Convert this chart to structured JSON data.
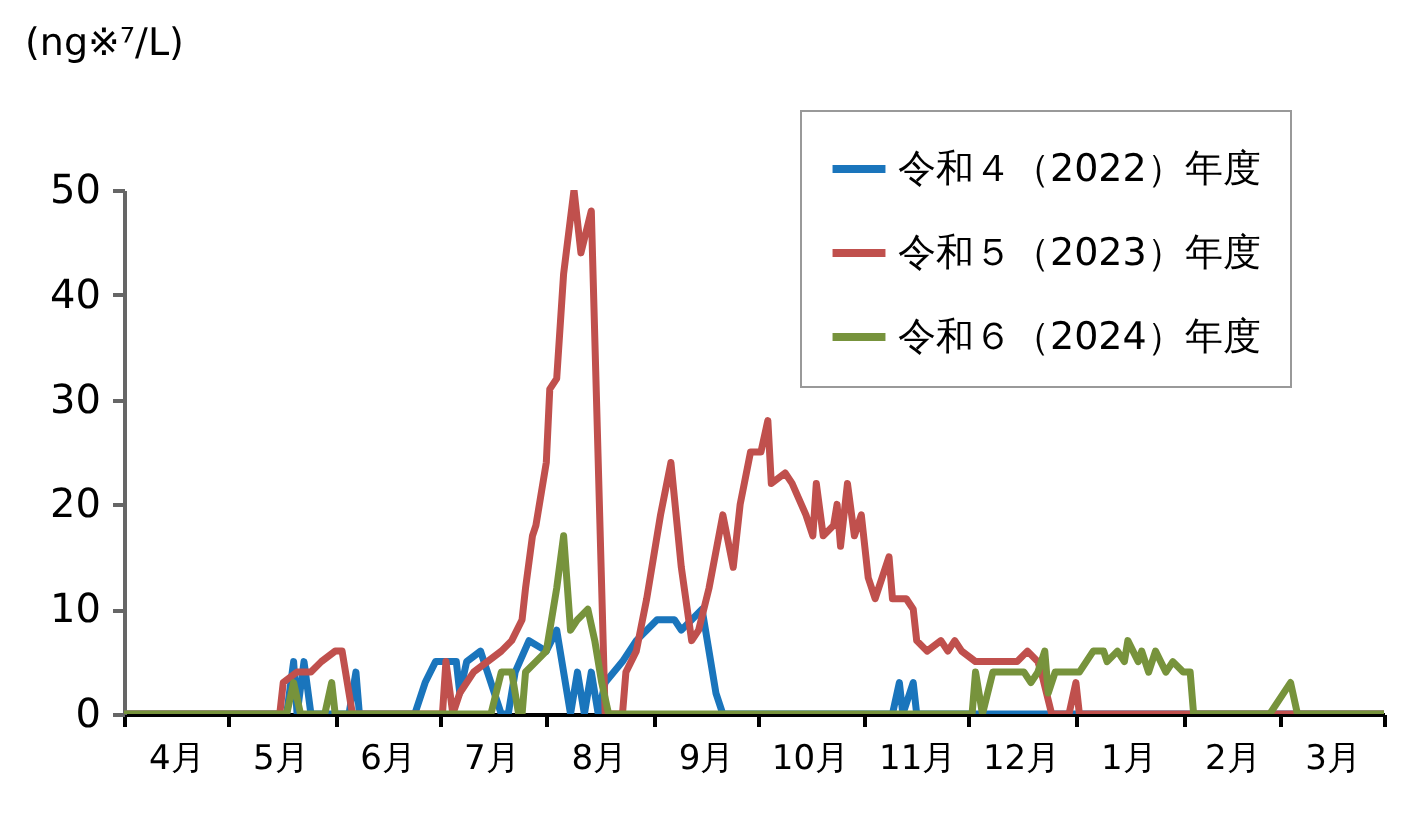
{
  "chart_data": {
    "type": "line",
    "ylabel": "(ng※⁷/L)",
    "xlim": [
      "2022-04-01",
      "2023-03-31"
    ],
    "xticks": [
      {
        "value": "2022-04-01",
        "label": null
      },
      {
        "value": "2022-04-16",
        "label": "4月"
      },
      {
        "value": "2022-05-01",
        "label": null
      },
      {
        "value": "2022-05-16",
        "label": "5月"
      },
      {
        "value": "2022-06-01",
        "label": null
      },
      {
        "value": "2022-06-16",
        "label": "6月"
      },
      {
        "value": "2022-07-01",
        "label": null
      },
      {
        "value": "2022-07-16",
        "label": "7月"
      },
      {
        "value": "2022-08-01",
        "label": null
      },
      {
        "value": "2022-08-16",
        "label": "8月"
      },
      {
        "value": "2022-09-01",
        "label": null
      },
      {
        "value": "2022-09-16",
        "label": "9月"
      },
      {
        "value": "2022-10-01",
        "label": null
      },
      {
        "value": "2022-10-16",
        "label": "10月"
      },
      {
        "value": "2022-11-01",
        "label": null
      },
      {
        "value": "2022-11-16",
        "label": "11月"
      },
      {
        "value": "2022-12-01",
        "label": null
      },
      {
        "value": "2022-12-16",
        "label": "12月"
      },
      {
        "value": "2023-01-01",
        "label": null
      },
      {
        "value": "2023-01-16",
        "label": "1月"
      },
      {
        "value": "2023-02-01",
        "label": null
      },
      {
        "value": "2023-02-15",
        "label": "2月"
      },
      {
        "value": "2023-03-01",
        "label": null
      },
      {
        "value": "2023-03-16",
        "label": "3月"
      },
      {
        "value": "2023-03-31",
        "label": null
      }
    ],
    "ylim": [
      0,
      50
    ],
    "yticks": [
      0,
      10,
      20,
      30,
      40,
      50
    ],
    "legend": "top right",
    "series": [
      {
        "name": "令和４（2022）年度",
        "color": "#1a75bc",
        "x": [
          "2022-04-01",
          "2022-05-18",
          "2022-05-20",
          "2022-05-21",
          "2022-05-23",
          "2022-05-25",
          "2022-06-05",
          "2022-06-07",
          "2022-06-08",
          "2022-06-24",
          "2022-06-27",
          "2022-06-30",
          "2022-07-06",
          "2022-07-07",
          "2022-07-09",
          "2022-07-13",
          "2022-07-17",
          "2022-07-19",
          "2022-07-21",
          "2022-07-23",
          "2022-07-27",
          "2022-08-01",
          "2022-08-04",
          "2022-08-08",
          "2022-08-10",
          "2022-08-12",
          "2022-08-14",
          "2022-08-16",
          "2022-08-18",
          "2022-08-23",
          "2022-08-27",
          "2022-09-02",
          "2022-09-07",
          "2022-09-09",
          "2022-09-12",
          "2022-09-15",
          "2022-09-19",
          "2022-09-21",
          "2022-11-09",
          "2022-11-11",
          "2022-11-12",
          "2022-11-15",
          "2022-11-16",
          "2023-03-31"
        ],
        "values": [
          0,
          0,
          5,
          0,
          5,
          0,
          0,
          4,
          0,
          0,
          3,
          5,
          5,
          2,
          5,
          6,
          2,
          0,
          0,
          4,
          7,
          6,
          8,
          0,
          4,
          0,
          4,
          0,
          3,
          5,
          7,
          9,
          9,
          8,
          9,
          10,
          2,
          0,
          0,
          3,
          0,
          3,
          0,
          0
        ]
      },
      {
        "name": "令和５（2023）年度",
        "color": "#c0504d",
        "x": [
          "2022-04-01",
          "2022-05-16",
          "2022-05-17",
          "2022-05-21",
          "2022-05-25",
          "2022-05-28",
          "2022-06-01",
          "2022-06-03",
          "2022-06-06",
          "2022-07-02",
          "2022-07-03",
          "2022-07-05",
          "2022-07-07",
          "2022-07-11",
          "2022-07-15",
          "2022-07-19",
          "2022-07-22",
          "2022-07-25",
          "2022-07-26",
          "2022-07-28",
          "2022-07-29",
          "2022-08-01",
          "2022-08-02",
          "2022-08-04",
          "2022-08-06",
          "2022-08-09",
          "2022-08-11",
          "2022-08-14",
          "2022-08-18",
          "2022-08-23",
          "2022-08-24",
          "2022-08-27",
          "2022-08-30",
          "2022-09-03",
          "2022-09-06",
          "2022-09-09",
          "2022-09-12",
          "2022-09-14",
          "2022-09-17",
          "2022-09-21",
          "2022-09-24",
          "2022-09-26",
          "2022-09-29",
          "2022-10-02",
          "2022-10-04",
          "2022-10-05",
          "2022-10-09",
          "2022-10-11",
          "2022-10-15",
          "2022-10-17",
          "2022-10-18",
          "2022-10-20",
          "2022-10-23",
          "2022-10-24",
          "2022-10-25",
          "2022-10-27",
          "2022-10-29",
          "2022-10-31",
          "2022-11-02",
          "2022-11-04",
          "2022-11-08",
          "2022-11-09",
          "2022-11-13",
          "2022-11-15",
          "2022-11-16",
          "2022-11-19",
          "2022-11-23",
          "2022-11-25",
          "2022-11-27",
          "2022-11-29",
          "2022-12-03",
          "2022-12-07",
          "2022-12-15",
          "2022-12-18",
          "2022-12-21",
          "2022-12-22",
          "2022-12-25",
          "2022-12-30",
          "2023-01-01",
          "2023-01-02",
          "2023-03-31"
        ],
        "values": [
          0,
          0,
          3,
          4,
          4,
          5,
          6,
          6,
          0,
          0,
          5,
          0,
          2,
          4,
          5,
          6,
          7,
          9,
          12,
          17,
          18,
          24,
          31,
          32,
          42,
          50,
          44,
          48,
          0,
          0,
          4,
          6,
          11,
          19,
          24,
          14,
          7,
          8,
          12,
          19,
          14,
          20,
          25,
          25,
          28,
          22,
          23,
          22,
          19,
          17,
          22,
          17,
          18,
          20,
          16,
          22,
          17,
          19,
          13,
          11,
          15,
          11,
          11,
          10,
          7,
          6,
          7,
          6,
          7,
          6,
          5,
          5,
          5,
          6,
          5,
          4,
          0,
          0,
          3,
          0,
          0
        ]
      },
      {
        "name": "令和６（2024）年度",
        "color": "#77933c",
        "x": [
          "2022-04-01",
          "2022-05-18",
          "2022-05-20",
          "2022-05-22",
          "2022-05-29",
          "2022-05-31",
          "2022-06-01",
          "2022-07-16",
          "2022-07-19",
          "2022-07-22",
          "2022-07-24",
          "2022-07-25",
          "2022-07-26",
          "2022-07-29",
          "2022-08-01",
          "2022-08-02",
          "2022-08-04",
          "2022-08-06",
          "2022-08-08",
          "2022-08-10",
          "2022-08-13",
          "2022-08-15",
          "2022-08-17",
          "2022-08-19",
          "2022-12-02",
          "2022-12-03",
          "2022-12-05",
          "2022-12-08",
          "2022-12-17",
          "2022-12-19",
          "2022-12-21",
          "2022-12-23",
          "2022-12-24",
          "2022-12-26",
          "2023-01-02",
          "2023-01-06",
          "2023-01-09",
          "2023-01-10",
          "2023-01-13",
          "2023-01-15",
          "2023-01-16",
          "2023-01-19",
          "2023-01-20",
          "2023-01-22",
          "2023-01-24",
          "2023-01-27",
          "2023-01-29",
          "2023-02-01",
          "2023-02-03",
          "2023-02-04",
          "2023-02-26",
          "2023-03-04",
          "2023-03-06",
          "2023-03-31"
        ],
        "values": [
          0,
          0,
          3,
          0,
          0,
          3,
          0,
          0,
          4,
          4,
          0,
          0,
          4,
          5,
          6,
          8,
          12,
          17,
          8,
          9,
          10,
          7,
          3,
          0,
          0,
          4,
          0,
          4,
          4,
          3,
          4,
          6,
          2,
          4,
          4,
          6,
          6,
          5,
          6,
          5,
          7,
          5,
          6,
          4,
          6,
          4,
          5,
          4,
          4,
          0,
          0,
          3,
          0,
          0
        ]
      }
    ]
  }
}
